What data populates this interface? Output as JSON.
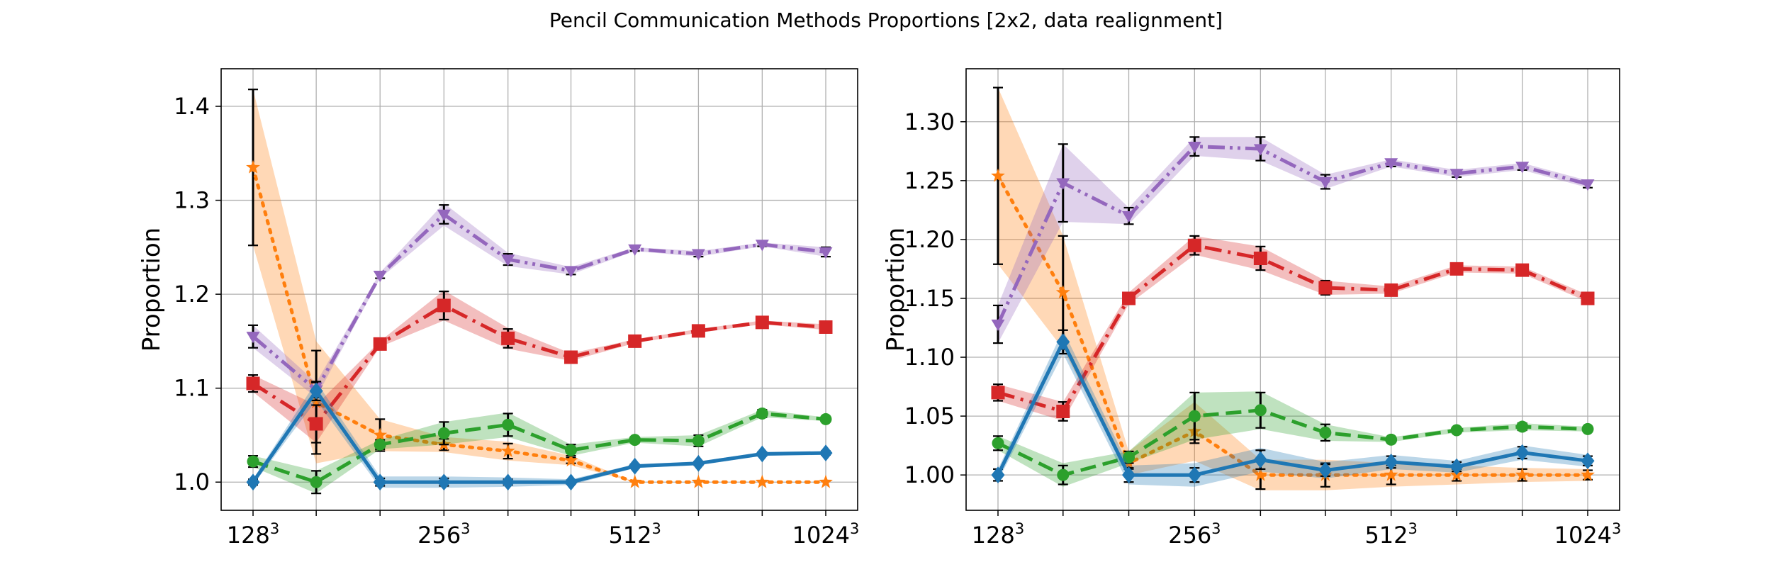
{
  "figure": {
    "title": "Pencil Communication Methods Proportions [2x2, data realignment]"
  },
  "chart_data": [
    {
      "type": "line",
      "title": "",
      "xlabel": "",
      "ylabel": "Proportion",
      "x_scale": "log2",
      "x_tick_labels": [
        {
          "base": "128",
          "exp": "3"
        },
        {
          "base": "256",
          "exp": "3"
        },
        {
          "base": "512",
          "exp": "3"
        },
        {
          "base": "1024",
          "exp": "3"
        }
      ],
      "x_tick_values": [
        128,
        256,
        512,
        1024
      ],
      "ylim": [
        0.97,
        1.44
      ],
      "y_ticks": [
        1.0,
        1.1,
        1.2,
        1.3,
        1.4
      ],
      "y_tick_labels": [
        "1.0",
        "1.1",
        "1.2",
        "1.3",
        "1.4"
      ],
      "grid": true,
      "x": [
        128,
        161,
        203,
        256,
        323,
        406,
        512,
        645,
        813,
        1024
      ],
      "series": [
        {
          "color": "#ff7f0e",
          "marker": "star",
          "dash": "dotted",
          "values": [
            1.335,
            1.085,
            1.05,
            1.04,
            1.033,
            1.023,
            1.0,
            1.0,
            1.0,
            1.0
          ],
          "err": [
            0.083,
            0.055,
            0.017,
            0.006,
            0.008,
            0.003,
            0.0,
            0.0,
            0.0,
            0.0
          ],
          "band": [
            0.083,
            0.065,
            0.017,
            0.008,
            0.01,
            0.005,
            0.0,
            0.0,
            0.0,
            0.0
          ]
        },
        {
          "color": "#9467bd",
          "marker": "triangle-down",
          "dash": "dashdot-double",
          "values": [
            1.155,
            1.098,
            1.22,
            1.285,
            1.237,
            1.225,
            1.248,
            1.243,
            1.253,
            1.245
          ],
          "err": [
            0.012,
            0.008,
            0.003,
            0.01,
            0.006,
            0.004,
            0.002,
            0.003,
            0.002,
            0.005
          ],
          "band": [
            0.012,
            0.008,
            0.003,
            0.012,
            0.007,
            0.004,
            0.002,
            0.003,
            0.002,
            0.005
          ]
        },
        {
          "color": "#d62728",
          "marker": "square",
          "dash": "dashdot",
          "values": [
            1.105,
            1.062,
            1.147,
            1.188,
            1.153,
            1.133,
            1.15,
            1.161,
            1.17,
            1.165
          ],
          "err": [
            0.009,
            0.02,
            0.003,
            0.015,
            0.01,
            0.004,
            0.002,
            0.002,
            0.002,
            0.003
          ],
          "band": [
            0.009,
            0.02,
            0.003,
            0.016,
            0.011,
            0.004,
            0.002,
            0.002,
            0.002,
            0.003
          ]
        },
        {
          "color": "#2ca02c",
          "marker": "circle",
          "dash": "dashed",
          "values": [
            1.022,
            1.0,
            1.04,
            1.052,
            1.061,
            1.034,
            1.045,
            1.044,
            1.073,
            1.067
          ],
          "err": [
            0.006,
            0.012,
            0.005,
            0.012,
            0.012,
            0.006,
            0.003,
            0.006,
            0.004,
            0.002
          ],
          "band": [
            0.006,
            0.012,
            0.005,
            0.012,
            0.013,
            0.006,
            0.003,
            0.006,
            0.004,
            0.002
          ]
        },
        {
          "color": "#1f77b4",
          "marker": "diamond",
          "dash": "solid",
          "values": [
            1.0,
            1.097,
            1.0,
            1.0,
            1.0,
            1.0,
            1.017,
            1.02,
            1.03,
            1.031
          ],
          "err": [
            0.003,
            0.01,
            0.004,
            0.004,
            0.003,
            0.002,
            0.002,
            0.002,
            0.002,
            0.002
          ],
          "band": [
            0.003,
            0.01,
            0.006,
            0.006,
            0.005,
            0.003,
            0.002,
            0.002,
            0.002,
            0.002
          ]
        }
      ]
    },
    {
      "type": "line",
      "title": "",
      "xlabel": "",
      "ylabel": "Proportion",
      "x_scale": "log2",
      "x_tick_labels": [
        {
          "base": "128",
          "exp": "3"
        },
        {
          "base": "256",
          "exp": "3"
        },
        {
          "base": "512",
          "exp": "3"
        },
        {
          "base": "1024",
          "exp": "3"
        }
      ],
      "x_tick_values": [
        128,
        256,
        512,
        1024
      ],
      "ylim": [
        0.97,
        1.345
      ],
      "y_ticks": [
        1.0,
        1.05,
        1.1,
        1.15,
        1.2,
        1.25,
        1.3
      ],
      "y_tick_labels": [
        "1.00",
        "1.05",
        "1.10",
        "1.15",
        "1.20",
        "1.25",
        "1.30"
      ],
      "grid": true,
      "x": [
        128,
        161,
        203,
        256,
        323,
        406,
        512,
        645,
        813,
        1024
      ],
      "series": [
        {
          "color": "#ff7f0e",
          "marker": "star",
          "dash": "dotted",
          "values": [
            1.254,
            1.155,
            1.01,
            1.037,
            1.0,
            1.0,
            1.0,
            1.0,
            1.0,
            1.0
          ],
          "err": [
            0.075,
            0.048,
            0.005,
            0.01,
            0.012,
            0.01,
            0.008,
            0.005,
            0.005,
            0.004
          ],
          "band": [
            0.075,
            0.048,
            0.01,
            0.025,
            0.013,
            0.013,
            0.01,
            0.008,
            0.006,
            0.005
          ]
        },
        {
          "color": "#9467bd",
          "marker": "triangle-down",
          "dash": "dashdot-double",
          "values": [
            1.128,
            1.248,
            1.22,
            1.279,
            1.277,
            1.249,
            1.265,
            1.256,
            1.262,
            1.247
          ],
          "err": [
            0.016,
            0.033,
            0.007,
            0.008,
            0.01,
            0.006,
            0.003,
            0.003,
            0.003,
            0.003
          ],
          "band": [
            0.016,
            0.033,
            0.007,
            0.008,
            0.01,
            0.006,
            0.003,
            0.003,
            0.003,
            0.003
          ]
        },
        {
          "color": "#d62728",
          "marker": "square",
          "dash": "dashdot",
          "values": [
            1.07,
            1.054,
            1.15,
            1.195,
            1.184,
            1.159,
            1.157,
            1.175,
            1.174,
            1.15
          ],
          "err": [
            0.007,
            0.008,
            0.005,
            0.008,
            0.01,
            0.006,
            0.003,
            0.003,
            0.003,
            0.003
          ],
          "band": [
            0.007,
            0.008,
            0.005,
            0.008,
            0.01,
            0.006,
            0.003,
            0.003,
            0.003,
            0.003
          ]
        },
        {
          "color": "#2ca02c",
          "marker": "circle",
          "dash": "dashed",
          "values": [
            1.027,
            1.0,
            1.015,
            1.05,
            1.055,
            1.036,
            1.03,
            1.038,
            1.041,
            1.039
          ],
          "err": [
            0.006,
            0.008,
            0.005,
            0.02,
            0.015,
            0.007,
            0.002,
            0.002,
            0.003,
            0.002
          ],
          "band": [
            0.006,
            0.01,
            0.005,
            0.02,
            0.016,
            0.007,
            0.002,
            0.002,
            0.003,
            0.002
          ]
        },
        {
          "color": "#1f77b4",
          "marker": "diamond",
          "dash": "solid",
          "values": [
            1.0,
            1.113,
            1.0,
            1.0,
            1.013,
            1.004,
            1.011,
            1.007,
            1.019,
            1.012
          ],
          "err": [
            0.005,
            0.01,
            0.006,
            0.006,
            0.008,
            0.005,
            0.005,
            0.004,
            0.005,
            0.004
          ],
          "band": [
            0.005,
            0.01,
            0.008,
            0.01,
            0.01,
            0.007,
            0.006,
            0.005,
            0.006,
            0.005
          ]
        }
      ]
    }
  ]
}
